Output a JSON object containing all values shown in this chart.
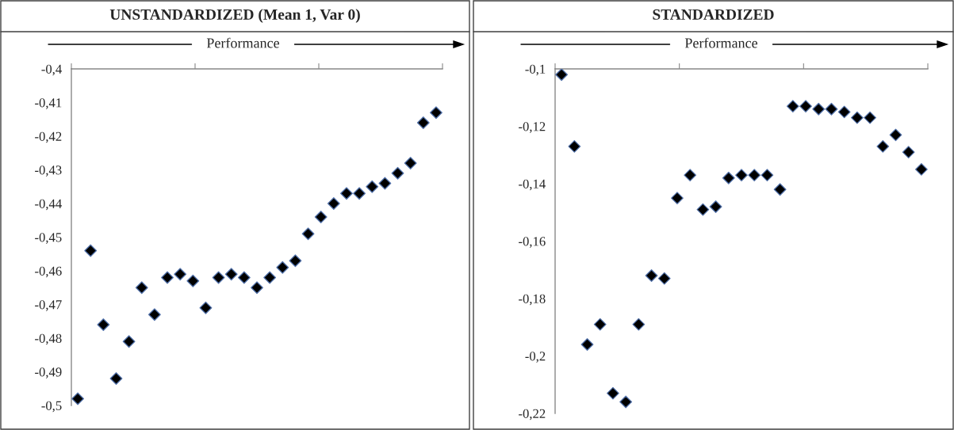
{
  "chart_data": [
    {
      "type": "scatter",
      "title": "UNSTANDARDIZED (Mean 1, Var 0)",
      "annotations": [
        "Performance"
      ],
      "marker": "diamond",
      "tick_labels": "y",
      "grid": false,
      "categories": [
        null,
        null,
        null,
        null,
        null,
        null,
        null,
        null,
        null,
        null,
        null,
        null,
        null,
        null,
        null,
        null,
        null,
        null,
        null,
        null,
        null,
        null,
        null,
        null,
        null,
        null,
        null,
        null,
        null
      ],
      "series": [
        {
          "color": "#000000",
          "values": [
            -0.498,
            -0.454,
            -0.476,
            -0.492,
            -0.481,
            -0.465,
            -0.473,
            -0.462,
            -0.461,
            -0.463,
            -0.471,
            -0.462,
            -0.461,
            -0.462,
            -0.465,
            -0.462,
            -0.459,
            -0.457,
            -0.449,
            -0.444,
            -0.44,
            -0.437,
            -0.437,
            -0.435,
            -0.434,
            -0.431,
            -0.428,
            -0.416,
            -0.413
          ]
        }
      ],
      "ylim": [
        -0.5,
        -0.4
      ],
      "yticks": [
        {
          "value": -0.5,
          "label": "-0,5"
        },
        {
          "value": -0.49,
          "label": "-0,49"
        },
        {
          "value": -0.48,
          "label": "-0,48"
        },
        {
          "value": -0.47,
          "label": "-0,47"
        },
        {
          "value": -0.46,
          "label": "-0,46"
        },
        {
          "value": -0.45,
          "label": "-0,45"
        },
        {
          "value": -0.44,
          "label": "-0,44"
        },
        {
          "value": -0.43,
          "label": "-0,43"
        },
        {
          "value": -0.42,
          "label": "-0,42"
        },
        {
          "value": -0.41,
          "label": "-0,41"
        },
        {
          "value": -0.4,
          "label": "-0,4"
        }
      ]
    },
    {
      "type": "scatter",
      "title": "STANDARDIZED",
      "annotations": [
        "Performance"
      ],
      "marker": "diamond",
      "tick_labels": "y",
      "grid": false,
      "categories": [
        null,
        null,
        null,
        null,
        null,
        null,
        null,
        null,
        null,
        null,
        null,
        null,
        null,
        null,
        null,
        null,
        null,
        null,
        null,
        null,
        null,
        null,
        null,
        null,
        null,
        null,
        null,
        null,
        null
      ],
      "series": [
        {
          "color": "#000000",
          "values": [
            -0.102,
            -0.127,
            -0.196,
            -0.189,
            -0.213,
            -0.216,
            -0.189,
            -0.172,
            -0.173,
            -0.145,
            -0.137,
            -0.149,
            -0.148,
            -0.138,
            -0.137,
            -0.137,
            -0.137,
            -0.142,
            -0.113,
            -0.113,
            -0.114,
            -0.114,
            -0.115,
            -0.117,
            -0.117,
            -0.127,
            -0.123,
            -0.129,
            -0.135
          ]
        }
      ],
      "ylim": [
        -0.22,
        -0.1
      ],
      "yticks": [
        {
          "value": -0.22,
          "label": "-0,22"
        },
        {
          "value": -0.2,
          "label": "-0,2"
        },
        {
          "value": -0.18,
          "label": "-0,18"
        },
        {
          "value": -0.16,
          "label": "-0,16"
        },
        {
          "value": -0.14,
          "label": "-0,14"
        },
        {
          "value": -0.12,
          "label": "-0,12"
        },
        {
          "value": -0.1,
          "label": "-0,1"
        }
      ]
    }
  ]
}
